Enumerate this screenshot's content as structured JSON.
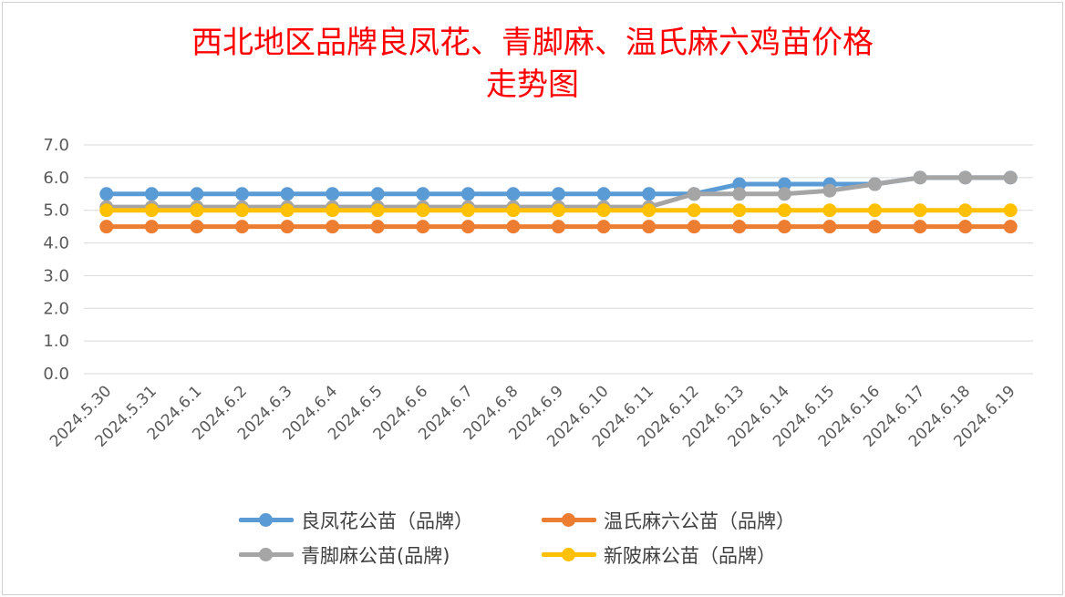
{
  "title_line1": "西北地区品牌良凤花、青脚麻、温氏麻六鸡苗价格",
  "title_line2": "走势图",
  "chart_data": {
    "type": "line",
    "title": "西北地区品牌良凤花、青脚麻、温氏麻六鸡苗价格走势图",
    "categories": [
      "2024.5.30",
      "2024.5.31",
      "2024.6.1",
      "2024.6.2",
      "2024.6.3",
      "2024.6.4",
      "2024.6.5",
      "2024.6.6",
      "2024.6.7",
      "2024.6.8",
      "2024.6.9",
      "2024.6.10",
      "2024.6.11",
      "2024.6.12",
      "2024.6.13",
      "2024.6.14",
      "2024.6.15",
      "2024.6.16",
      "2024.6.17",
      "2024.6.18",
      "2024.6.19"
    ],
    "ylim": [
      0,
      7
    ],
    "yticks": [
      "0.0",
      "1.0",
      "2.0",
      "3.0",
      "4.0",
      "5.0",
      "6.0",
      "7.0"
    ],
    "grid": true,
    "legend_position": "bottom",
    "series": [
      {
        "name": "良凤花公苗（品牌）",
        "color": "#5b9bd5",
        "values": [
          5.5,
          5.5,
          5.5,
          5.5,
          5.5,
          5.5,
          5.5,
          5.5,
          5.5,
          5.5,
          5.5,
          5.5,
          5.5,
          5.5,
          5.8,
          5.8,
          5.8,
          5.8,
          6.0,
          6.0,
          6.0
        ]
      },
      {
        "name": "温氏麻六公苗（品牌）",
        "color": "#ed7d31",
        "values": [
          4.5,
          4.5,
          4.5,
          4.5,
          4.5,
          4.5,
          4.5,
          4.5,
          4.5,
          4.5,
          4.5,
          4.5,
          4.5,
          4.5,
          4.5,
          4.5,
          4.5,
          4.5,
          4.5,
          4.5,
          4.5
        ]
      },
      {
        "name": "青脚麻公苗(品牌)",
        "color": "#a5a5a5",
        "values": [
          5.1,
          5.1,
          5.1,
          5.1,
          5.1,
          5.1,
          5.1,
          5.1,
          5.1,
          5.1,
          5.1,
          5.1,
          5.1,
          5.5,
          5.5,
          5.5,
          5.6,
          5.8,
          6.0,
          6.0,
          6.0
        ]
      },
      {
        "name": "新陂麻公苗（品牌）",
        "color": "#ffc000",
        "values": [
          5.0,
          5.0,
          5.0,
          5.0,
          5.0,
          5.0,
          5.0,
          5.0,
          5.0,
          5.0,
          5.0,
          5.0,
          5.0,
          5.0,
          5.0,
          5.0,
          5.0,
          5.0,
          5.0,
          5.0,
          5.0
        ]
      }
    ]
  }
}
